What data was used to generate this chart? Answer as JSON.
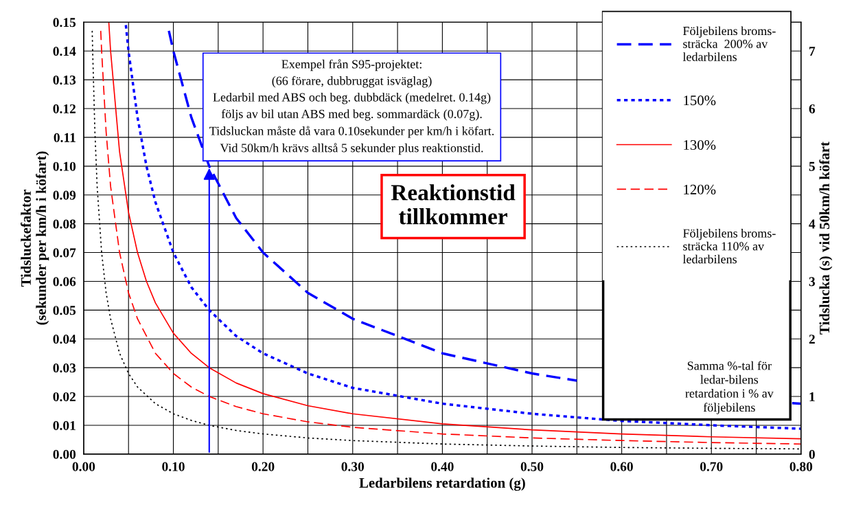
{
  "chart_data": {
    "type": "line",
    "xlabel": "Ledarbilens retardation (g)",
    "ylabel": "Tidsluckefaktor\n(sekunder per km/h i köfart)",
    "y2label": "Tidslucka (s) vid 50km/h köfart",
    "xlim": [
      0,
      0.8
    ],
    "ylim": [
      0,
      0.15
    ],
    "y2lim": [
      0,
      7.5
    ],
    "xticks": [
      {
        "value": 0,
        "label": "0.00"
      },
      {
        "value": 0.05,
        "label": null
      },
      {
        "value": 0.1,
        "label": "0.10"
      },
      {
        "value": 0.15,
        "label": null
      },
      {
        "value": 0.2,
        "label": "0.20"
      },
      {
        "value": 0.25,
        "label": null
      },
      {
        "value": 0.3,
        "label": "0.30"
      },
      {
        "value": 0.35,
        "label": null
      },
      {
        "value": 0.4,
        "label": "0.40"
      },
      {
        "value": 0.45,
        "label": null
      },
      {
        "value": 0.5,
        "label": "0.50"
      },
      {
        "value": 0.55,
        "label": null
      },
      {
        "value": 0.6,
        "label": "0.60"
      },
      {
        "value": 0.65,
        "label": null
      },
      {
        "value": 0.7,
        "label": "0.70"
      },
      {
        "value": 0.75,
        "label": null
      },
      {
        "value": 0.8,
        "label": "0.80"
      }
    ],
    "yticks": [
      {
        "value": 0,
        "label": "0.00"
      },
      {
        "value": 0.01,
        "label": "0.01"
      },
      {
        "value": 0.02,
        "label": "0.02"
      },
      {
        "value": 0.03,
        "label": "0.03"
      },
      {
        "value": 0.04,
        "label": "0.04"
      },
      {
        "value": 0.05,
        "label": "0.05"
      },
      {
        "value": 0.06,
        "label": "0.06"
      },
      {
        "value": 0.07,
        "label": "0.07"
      },
      {
        "value": 0.08,
        "label": "0.08"
      },
      {
        "value": 0.09,
        "label": "0.09"
      },
      {
        "value": 0.1,
        "label": "0.10"
      },
      {
        "value": 0.11,
        "label": "0.11"
      },
      {
        "value": 0.12,
        "label": "0.12"
      },
      {
        "value": 0.13,
        "label": "0.13"
      },
      {
        "value": 0.14,
        "label": "0.14"
      },
      {
        "value": 0.15,
        "label": "0.15"
      }
    ],
    "y2ticks": [
      0,
      1,
      2,
      3,
      4,
      5,
      6,
      7
    ],
    "grid": true,
    "legend": "top right",
    "marker": "none",
    "series": [
      {
        "name": "Följebilens broms-\nsträcka  200% av\nledarbilens",
        "color": "#0000ff",
        "line_style": "dashed",
        "x": [
          0.095,
          0.1,
          0.12,
          0.14,
          0.17,
          0.2,
          0.25,
          0.3,
          0.4,
          0.5,
          0.55,
          0.6,
          0.7,
          0.79,
          0.8
        ],
        "values": [
          0.147,
          0.14,
          0.117,
          0.1,
          0.082,
          0.07,
          0.056,
          0.047,
          0.035,
          0.028,
          0.0255,
          null,
          null,
          0.0177,
          0.0175
        ]
      },
      {
        "name": "150%",
        "color": "#0000ff",
        "line_style": "dotted",
        "x": [
          0.047,
          0.05,
          0.06,
          0.07,
          0.08,
          0.1,
          0.12,
          0.14,
          0.17,
          0.2,
          0.25,
          0.3,
          0.4,
          0.5,
          0.6,
          0.7,
          0.8
        ],
        "values": [
          0.149,
          0.14,
          0.117,
          0.1,
          0.0875,
          0.07,
          0.058,
          0.05,
          0.041,
          0.035,
          0.028,
          0.023,
          0.0175,
          0.014,
          0.0115,
          0.01,
          0.0088
        ]
      },
      {
        "name": "130%",
        "color": "#ff0000",
        "line_style": "solid",
        "x": [
          0.028,
          0.03,
          0.04,
          0.05,
          0.06,
          0.07,
          0.08,
          0.1,
          0.12,
          0.14,
          0.17,
          0.2,
          0.25,
          0.3,
          0.4,
          0.5,
          0.6,
          0.7,
          0.8
        ],
        "values": [
          0.15,
          0.14,
          0.105,
          0.084,
          0.07,
          0.06,
          0.0525,
          0.042,
          0.035,
          0.03,
          0.0247,
          0.021,
          0.0168,
          0.014,
          0.0105,
          0.0084,
          0.007,
          0.006,
          0.0053
        ]
      },
      {
        "name": "120%",
        "color": "#ff0000",
        "line_style": "dashed",
        "x": [
          0.019,
          0.02,
          0.025,
          0.03,
          0.04,
          0.05,
          0.06,
          0.08,
          0.1,
          0.12,
          0.14,
          0.17,
          0.2,
          0.25,
          0.3,
          0.4,
          0.5,
          0.6,
          0.7,
          0.8
        ],
        "values": [
          0.147,
          0.14,
          0.112,
          0.093,
          0.07,
          0.056,
          0.047,
          0.035,
          0.028,
          0.0233,
          0.02,
          0.0165,
          0.014,
          0.0112,
          0.0093,
          0.007,
          0.0056,
          0.0047,
          0.004,
          0.0035
        ]
      },
      {
        "name": "Följebilens broms-\nsträcka 110% av\nledarbilens",
        "color": "#000000",
        "line_style": "dotted",
        "x": [
          0.0095,
          0.01,
          0.0125,
          0.015,
          0.02,
          0.025,
          0.03,
          0.04,
          0.05,
          0.06,
          0.08,
          0.1,
          0.12,
          0.14,
          0.17,
          0.2,
          0.25,
          0.3,
          0.4,
          0.5,
          0.6,
          0.7,
          0.8
        ],
        "values": [
          0.147,
          0.14,
          0.112,
          0.093,
          0.07,
          0.056,
          0.047,
          0.035,
          0.028,
          0.0233,
          0.0175,
          0.014,
          0.0117,
          0.01,
          0.0082,
          0.007,
          0.0056,
          0.0047,
          0.0035,
          0.0028,
          0.0023,
          0.002,
          0.0018
        ]
      }
    ],
    "annotations": [
      {
        "text": "Exempel från S95-projektet:\n(66 förare, dubbruggat isväglag)\nLedarbil med ABS och beg. dubbdäck (medelret. 0.14g)\nföljs av bil utan ABS med beg. sommardäck (0.07g).\nTidsluckan måste då vara 0.10sekunder per km/h i köfart.\nVid 50km/h krävs alltså 5 sekunder plus reaktionstid.",
        "x": 0.14,
        "y": 0.1
      },
      "Reaktionstid\ntillkommer",
      "Samma %-tal för\nledar-bilens\nretardation i % av\nföljebilens"
    ]
  }
}
